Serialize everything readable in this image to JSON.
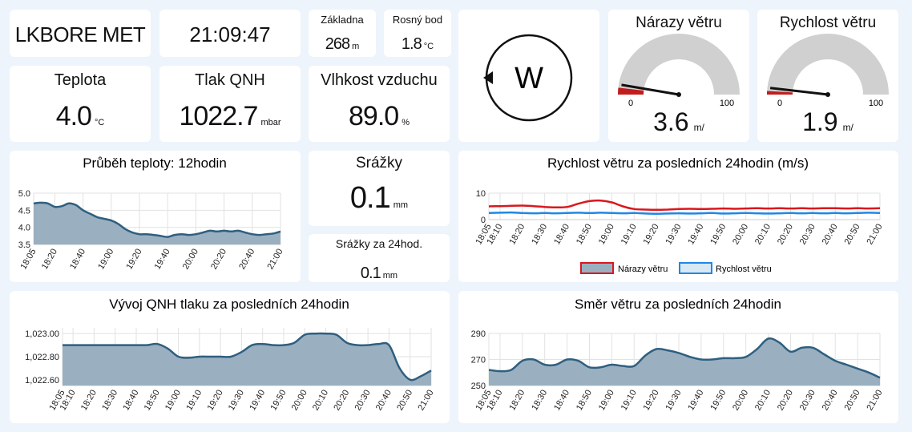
{
  "station": {
    "name": "LKBORE MET",
    "time": "21:09:47"
  },
  "base": {
    "label": "Základna",
    "value": "268",
    "unit": "m"
  },
  "dewpoint": {
    "label": "Rosný bod",
    "value": "1.8",
    "unit": "°C"
  },
  "wind_direction": {
    "letter": "W"
  },
  "gusts": {
    "label": "Nárazy větru",
    "value": "3.6",
    "unit": "m/",
    "min": "0",
    "max": "100",
    "level": 3.6
  },
  "speed": {
    "label": "Rychlost větru",
    "value": "1.9",
    "unit": "m/",
    "min": "0",
    "max": "100",
    "level": 1.9
  },
  "temperature": {
    "label": "Teplota",
    "value": "4.0",
    "unit": "°C"
  },
  "pressure": {
    "label": "Tlak QNH",
    "value": "1022.7",
    "unit": "mbar"
  },
  "humidity": {
    "label": "Vlhkost vzduchu",
    "value": "89.0",
    "unit": "%"
  },
  "rain": {
    "label": "Srážky",
    "value": "0.1",
    "unit": "mm"
  },
  "rain24": {
    "label": "Srážky za 24hod.",
    "value": "0.1",
    "unit": "mm"
  },
  "colors": {
    "area_fill": "#9ab0c1",
    "area_line": "#2f5f7f",
    "gust_red": "#d9181e",
    "speed_blue": "#1e88e5",
    "gauge_gray": "#d0d0d0",
    "background": "#eef4fb"
  },
  "chart_data": [
    {
      "type": "area",
      "title": "Průběh teploty: 12hodin",
      "x": [
        "18:05",
        "18:10",
        "18:15",
        "18:20",
        "18:25",
        "18:30",
        "18:35",
        "18:40",
        "18:45",
        "18:50",
        "18:55",
        "19:00",
        "19:05",
        "19:10",
        "19:15",
        "19:20",
        "19:25",
        "19:30",
        "19:35",
        "19:40",
        "19:45",
        "19:50",
        "19:55",
        "20:00",
        "20:05",
        "20:10",
        "20:15",
        "20:20",
        "20:25",
        "20:30",
        "20:35",
        "20:40",
        "20:45",
        "20:50",
        "20:55",
        "21:00"
      ],
      "xticks": [
        "18:05",
        "18:20",
        "18:40",
        "19:00",
        "19:20",
        "19:40",
        "20:00",
        "20:20",
        "20:40",
        "21:00"
      ],
      "values": [
        4.7,
        4.72,
        4.7,
        4.6,
        4.62,
        4.7,
        4.65,
        4.5,
        4.4,
        4.3,
        4.25,
        4.2,
        4.1,
        3.95,
        3.85,
        3.8,
        3.8,
        3.78,
        3.75,
        3.72,
        3.78,
        3.8,
        3.78,
        3.8,
        3.85,
        3.9,
        3.88,
        3.9,
        3.88,
        3.9,
        3.85,
        3.8,
        3.78,
        3.8,
        3.82,
        3.88
      ],
      "ylim": [
        3.5,
        5.0
      ],
      "yticks": [
        "3.5",
        "4.0",
        "4.5",
        "5.0"
      ],
      "grid": true
    },
    {
      "type": "line",
      "title": "Rychlost větru za posledních 24hodin (m/s)",
      "x": [
        "18:05",
        "18:10",
        "18:15",
        "18:20",
        "18:25",
        "18:30",
        "18:35",
        "18:40",
        "18:45",
        "18:50",
        "18:55",
        "19:00",
        "19:05",
        "19:10",
        "19:15",
        "19:20",
        "19:25",
        "19:30",
        "19:35",
        "19:40",
        "19:45",
        "19:50",
        "19:55",
        "20:00",
        "20:05",
        "20:10",
        "20:15",
        "20:20",
        "20:25",
        "20:30",
        "20:35",
        "20:40",
        "20:45",
        "20:50",
        "20:55",
        "21:00"
      ],
      "xticks": [
        "18:05",
        "18:10",
        "18:20",
        "18:30",
        "18:40",
        "18:50",
        "19:00",
        "19:10",
        "19:20",
        "19:30",
        "19:40",
        "19:50",
        "20:00",
        "20:10",
        "20:20",
        "20:30",
        "20:40",
        "20:50",
        "21:00"
      ],
      "series": [
        {
          "name": "Nárazy větru",
          "values": [
            5.0,
            5.1,
            5.2,
            5.3,
            5.1,
            4.8,
            4.6,
            4.8,
            6.0,
            7.0,
            7.2,
            6.5,
            5.0,
            4.0,
            3.8,
            3.7,
            3.8,
            4.0,
            4.1,
            4.0,
            4.1,
            4.2,
            4.1,
            4.2,
            4.3,
            4.2,
            4.3,
            4.2,
            4.3,
            4.2,
            4.3,
            4.3,
            4.2,
            4.3,
            4.2,
            4.3
          ]
        },
        {
          "name": "Rychlost větru",
          "values": [
            2.5,
            2.6,
            2.7,
            2.5,
            2.4,
            2.5,
            2.4,
            2.5,
            2.6,
            2.5,
            2.6,
            2.5,
            2.4,
            2.5,
            2.3,
            2.2,
            2.3,
            2.4,
            2.3,
            2.4,
            2.5,
            2.3,
            2.4,
            2.5,
            2.4,
            2.3,
            2.4,
            2.5,
            2.4,
            2.5,
            2.4,
            2.5,
            2.4,
            2.5,
            2.6,
            2.5
          ]
        }
      ],
      "ylim": [
        0,
        10
      ],
      "yticks": [
        "0",
        "10"
      ],
      "legend": "bottom",
      "grid": true
    },
    {
      "type": "area",
      "title": "Vývoj QNH tlaku za posledních 24hodin",
      "x": [
        "18:05",
        "18:10",
        "18:15",
        "18:20",
        "18:25",
        "18:30",
        "18:35",
        "18:40",
        "18:45",
        "18:50",
        "18:55",
        "19:00",
        "19:05",
        "19:10",
        "19:15",
        "19:20",
        "19:25",
        "19:30",
        "19:35",
        "19:40",
        "19:45",
        "19:50",
        "19:55",
        "20:00",
        "20:05",
        "20:10",
        "20:15",
        "20:20",
        "20:25",
        "20:30",
        "20:35",
        "20:40",
        "20:45",
        "20:50",
        "20:55",
        "21:00"
      ],
      "xticks": [
        "18:05",
        "18:10",
        "18:20",
        "18:30",
        "18:40",
        "18:50",
        "19:00",
        "19:10",
        "19:20",
        "19:30",
        "19:40",
        "19:50",
        "20:00",
        "20:10",
        "20:20",
        "20:30",
        "20:40",
        "20:50",
        "21:00"
      ],
      "values": [
        1022.9,
        1022.9,
        1022.9,
        1022.9,
        1022.9,
        1022.9,
        1022.9,
        1022.9,
        1022.9,
        1022.91,
        1022.87,
        1022.8,
        1022.79,
        1022.8,
        1022.8,
        1022.8,
        1022.8,
        1022.84,
        1022.9,
        1022.91,
        1022.9,
        1022.9,
        1022.92,
        1022.99,
        1023.0,
        1023.0,
        1022.99,
        1022.92,
        1022.9,
        1022.9,
        1022.91,
        1022.9,
        1022.7,
        1022.6,
        1022.63,
        1022.68
      ],
      "ylim": [
        1022.55,
        1023.05
      ],
      "yticks": [
        "1,022.60",
        "1,022.80",
        "1,023.00"
      ],
      "grid": true
    },
    {
      "type": "area",
      "title": "Směr větru za posledních 24hodin",
      "x": [
        "18:05",
        "18:10",
        "18:15",
        "18:20",
        "18:25",
        "18:30",
        "18:35",
        "18:40",
        "18:45",
        "18:50",
        "18:55",
        "19:00",
        "19:05",
        "19:10",
        "19:15",
        "19:20",
        "19:25",
        "19:30",
        "19:35",
        "19:40",
        "19:45",
        "19:50",
        "19:55",
        "20:00",
        "20:05",
        "20:10",
        "20:15",
        "20:20",
        "20:25",
        "20:30",
        "20:35",
        "20:40",
        "20:45",
        "20:50",
        "20:55",
        "21:00"
      ],
      "xticks": [
        "18:05",
        "18:10",
        "18:20",
        "18:30",
        "18:40",
        "18:50",
        "19:00",
        "19:10",
        "19:20",
        "19:30",
        "19:40",
        "19:50",
        "20:00",
        "20:10",
        "20:20",
        "20:30",
        "20:40",
        "20:50",
        "21:00"
      ],
      "values": [
        262,
        261,
        262,
        269,
        270,
        266,
        266,
        270,
        269,
        264,
        264,
        266,
        265,
        265,
        273,
        278,
        277,
        275,
        272,
        270,
        270,
        271,
        271,
        272,
        278,
        286,
        283,
        276,
        279,
        279,
        274,
        269,
        266,
        263,
        260,
        256
      ],
      "ylim": [
        250,
        290
      ],
      "yticks": [
        "250",
        "270",
        "290"
      ],
      "grid": true
    }
  ]
}
